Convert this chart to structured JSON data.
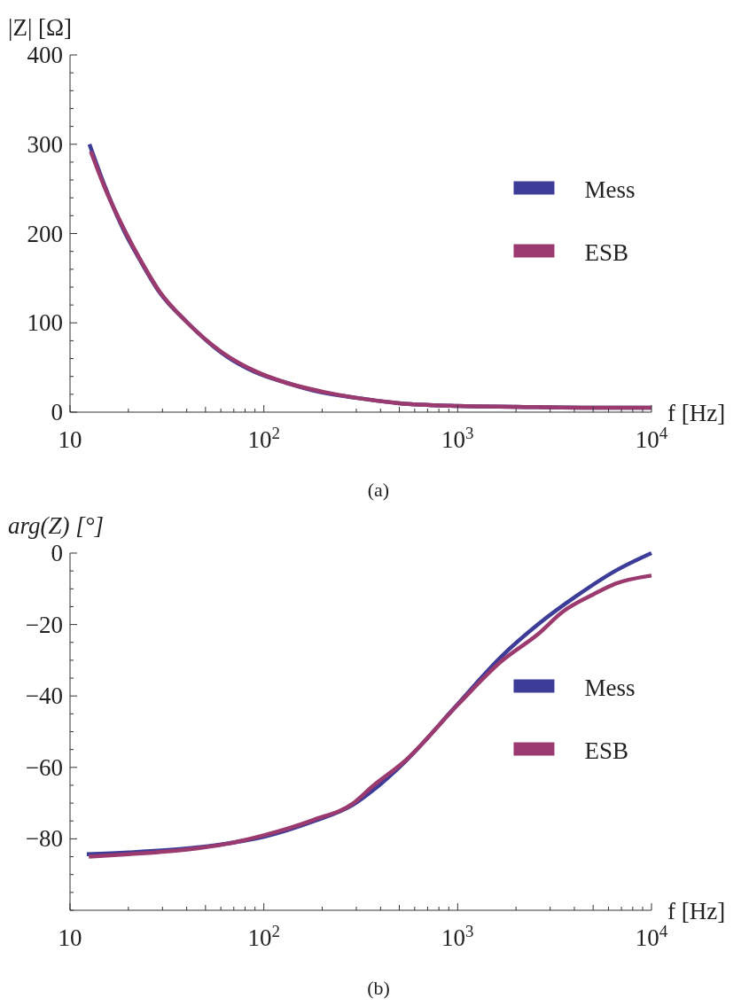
{
  "chart_data": [
    {
      "type": "line",
      "ylabel": "|Z| [Ω]",
      "xlabel": "f [Hz]",
      "annotations": [
        "(a)"
      ],
      "log": "x",
      "grid": false,
      "legend": "right",
      "marker": "none",
      "line_style": "solid",
      "xlim": [
        10,
        10000
      ],
      "xticks": [
        10,
        {
          "value": 20,
          "label": null
        },
        {
          "value": 30,
          "label": null
        },
        {
          "value": 40,
          "label": null
        },
        {
          "value": 50,
          "label": null
        },
        {
          "value": 60,
          "label": null
        },
        {
          "value": 70,
          "label": null
        },
        {
          "value": 80,
          "label": null
        },
        {
          "value": 90,
          "label": null
        },
        {
          "value": 100,
          "label": "10$^{2}$"
        },
        {
          "value": 200,
          "label": null
        },
        {
          "value": 300,
          "label": null
        },
        {
          "value": 400,
          "label": null
        },
        {
          "value": 500,
          "label": null
        },
        {
          "value": 600,
          "label": null
        },
        {
          "value": 700,
          "label": null
        },
        {
          "value": 800,
          "label": null
        },
        {
          "value": 900,
          "label": null
        },
        {
          "value": 1000,
          "label": "10$^{3}$"
        },
        {
          "value": 2000,
          "label": null
        },
        {
          "value": 3000,
          "label": null
        },
        {
          "value": 4000,
          "label": null
        },
        {
          "value": 5000,
          "label": null
        },
        {
          "value": 6000,
          "label": null
        },
        {
          "value": 7000,
          "label": null
        },
        {
          "value": 8000,
          "label": null
        },
        {
          "value": 9000,
          "label": null
        },
        {
          "value": 10000,
          "label": "10$^{4}$"
        }
      ],
      "ylim": [
        0,
        400
      ],
      "yticks": [
        0,
        {
          "value": 20,
          "label": null
        },
        {
          "value": 40,
          "label": null
        },
        {
          "value": 60,
          "label": null
        },
        {
          "value": 80,
          "label": null
        },
        100,
        {
          "value": 120,
          "label": null
        },
        {
          "value": 140,
          "label": null
        },
        {
          "value": 160,
          "label": null
        },
        {
          "value": 180,
          "label": null
        },
        200,
        {
          "value": 220,
          "label": null
        },
        {
          "value": 240,
          "label": null
        },
        {
          "value": 260,
          "label": null
        },
        {
          "value": 280,
          "label": null
        },
        300,
        {
          "value": 320,
          "label": null
        },
        {
          "value": 340,
          "label": null
        },
        {
          "value": 360,
          "label": null
        },
        {
          "value": 380,
          "label": null
        },
        400
      ],
      "series": [
        {
          "name": "Mess",
          "color": "#3d3d99",
          "x": [
            12.6,
            15,
            19,
            23,
            29,
            40,
            60,
            90,
            130,
            200,
            300,
            500,
            1000,
            2000,
            5000,
            10000
          ],
          "values": [
            300,
            255,
            203,
            170,
            134,
            101,
            67,
            45,
            33,
            22,
            16,
            10,
            7,
            6,
            5,
            5
          ]
        },
        {
          "name": "ESB",
          "color": "#9b3a6e",
          "x": [
            12.8,
            15,
            19,
            23,
            29,
            40,
            60,
            90,
            130,
            200,
            300,
            500,
            1000,
            2000,
            5000,
            10000
          ],
          "values": [
            292,
            253,
            205,
            171,
            135,
            101,
            68,
            46,
            33,
            23,
            16,
            10,
            7,
            6,
            5,
            5
          ]
        }
      ]
    },
    {
      "type": "line",
      "ylabel": "arg(Z) [°]",
      "xlabel": "f [Hz]",
      "annotations": [
        "(b)"
      ],
      "log": "x",
      "grid": false,
      "legend": "right",
      "marker": "none",
      "line_style": "solid",
      "xlim": [
        10,
        10000
      ],
      "xticks": [
        10,
        {
          "value": 20,
          "label": null
        },
        {
          "value": 30,
          "label": null
        },
        {
          "value": 40,
          "label": null
        },
        {
          "value": 50,
          "label": null
        },
        {
          "value": 60,
          "label": null
        },
        {
          "value": 70,
          "label": null
        },
        {
          "value": 80,
          "label": null
        },
        {
          "value": 90,
          "label": null
        },
        {
          "value": 100,
          "label": "10$^{2}$"
        },
        {
          "value": 200,
          "label": null
        },
        {
          "value": 300,
          "label": null
        },
        {
          "value": 400,
          "label": null
        },
        {
          "value": 500,
          "label": null
        },
        {
          "value": 600,
          "label": null
        },
        {
          "value": 700,
          "label": null
        },
        {
          "value": 800,
          "label": null
        },
        {
          "value": 900,
          "label": null
        },
        {
          "value": 1000,
          "label": "10$^{3}$"
        },
        {
          "value": 2000,
          "label": null
        },
        {
          "value": 3000,
          "label": null
        },
        {
          "value": 4000,
          "label": null
        },
        {
          "value": 5000,
          "label": null
        },
        {
          "value": 6000,
          "label": null
        },
        {
          "value": 7000,
          "label": null
        },
        {
          "value": 8000,
          "label": null
        },
        {
          "value": 9000,
          "label": null
        },
        {
          "value": 10000,
          "label": "10$^{4}$"
        }
      ],
      "ylim": [
        -100,
        0
      ],
      "yticks": [
        {
          "value": -100,
          "label": null
        },
        {
          "value": -95,
          "label": null
        },
        {
          "value": -90,
          "label": null
        },
        {
          "value": -85,
          "label": null
        },
        {
          "value": -80,
          "label": "−80"
        },
        {
          "value": -75,
          "label": null
        },
        {
          "value": -70,
          "label": null
        },
        {
          "value": -65,
          "label": null
        },
        {
          "value": -60,
          "label": "−60"
        },
        {
          "value": -55,
          "label": null
        },
        {
          "value": -50,
          "label": null
        },
        {
          "value": -45,
          "label": null
        },
        {
          "value": -40,
          "label": "−40"
        },
        {
          "value": -35,
          "label": null
        },
        {
          "value": -30,
          "label": null
        },
        {
          "value": -25,
          "label": null
        },
        {
          "value": -20,
          "label": "−20"
        },
        {
          "value": -15,
          "label": null
        },
        {
          "value": -10,
          "label": null
        },
        {
          "value": -5,
          "label": null
        },
        0
      ],
      "series": [
        {
          "name": "Mess",
          "color": "#3d3d99",
          "x": [
            12.2,
            20,
            40,
            70,
            100,
            180,
            290,
            360,
            540,
            1000,
            1670,
            2620,
            4130,
            6500,
            10000
          ],
          "values": [
            -84.3,
            -83.8,
            -82.7,
            -81,
            -79.4,
            -75.1,
            -70.4,
            -66.7,
            -58.2,
            -42.3,
            -29.1,
            -19.8,
            -11.9,
            -5,
            0
          ]
        },
        {
          "name": "ESB",
          "color": "#9b3a6e",
          "x": [
            12.5,
            20,
            40,
            70,
            100,
            180,
            290,
            360,
            540,
            1000,
            1670,
            2620,
            3470,
            5000,
            6500,
            10000
          ],
          "values": [
            -85,
            -84.3,
            -83,
            -81,
            -79,
            -74.7,
            -70,
            -65.5,
            -58,
            -42.5,
            -30.4,
            -22.5,
            -16.5,
            -11.6,
            -8.6,
            -6.3
          ]
        }
      ]
    }
  ]
}
